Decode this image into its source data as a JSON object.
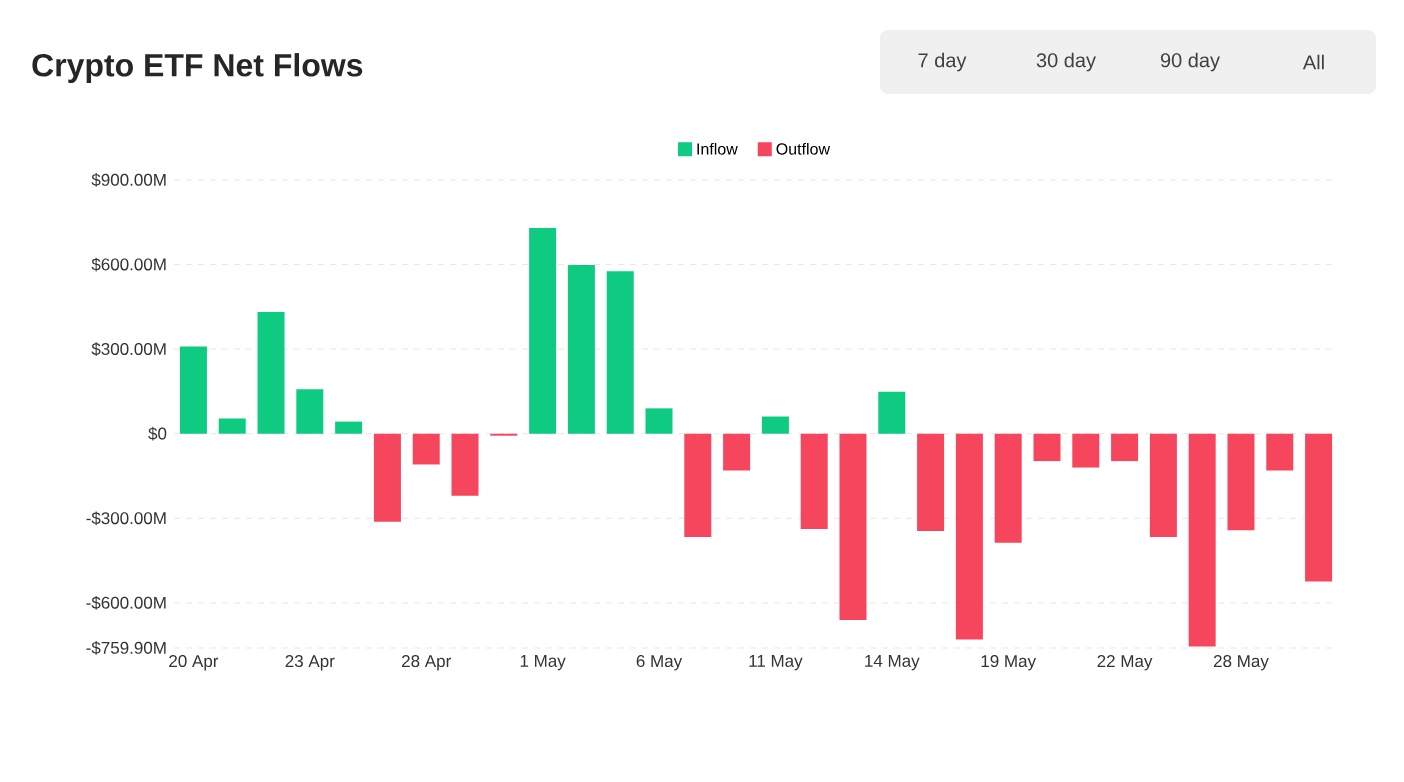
{
  "chart_data": {
    "type": "bar",
    "title": "Crypto ETF Net Flows",
    "annotations": [
      "7 day",
      "30 day",
      "90 day",
      "All"
    ],
    "categories": [
      "20 Apr",
      null,
      null,
      "23 Apr",
      null,
      null,
      "28 Apr",
      null,
      null,
      "1 May",
      null,
      null,
      "6 May",
      null,
      null,
      "11 May",
      null,
      null,
      "14 May",
      null,
      null,
      "19 May",
      null,
      null,
      "22 May",
      null,
      null,
      "28 May",
      null,
      null
    ],
    "series": [
      {
        "name": "Inflow",
        "color": "#0ecb81",
        "values": [
          309,
          54,
          432,
          158,
          43,
          null,
          null,
          null,
          null,
          730,
          598,
          576,
          90,
          null,
          null,
          61,
          null,
          null,
          149,
          null,
          null,
          null,
          null,
          null,
          null,
          null,
          null,
          null,
          null,
          null
        ]
      },
      {
        "name": "Outflow",
        "color": "#f6465d",
        "values": [
          null,
          null,
          null,
          null,
          null,
          -312,
          -109,
          -220,
          -7,
          null,
          null,
          null,
          null,
          -366,
          -130,
          null,
          -338,
          -661,
          null,
          -345,
          -730,
          -387,
          -97,
          -120,
          -97,
          -366,
          -755,
          -342,
          -130,
          -524
        ]
      }
    ],
    "stacked": true,
    "ylim": [
      -759.9,
      900
    ],
    "yticks": [
      {
        "value": -759.9,
        "label": "-$759.90M"
      },
      {
        "value": -600,
        "label": "-$600.00M"
      },
      {
        "value": -300,
        "label": "-$300.00M"
      },
      {
        "value": 0,
        "label": "$0"
      },
      {
        "value": 300,
        "label": "$300.00M"
      },
      {
        "value": 600,
        "label": "$600.00M"
      },
      {
        "value": 900,
        "label": "$900.00M"
      }
    ],
    "grid": "y",
    "legend": "top"
  }
}
